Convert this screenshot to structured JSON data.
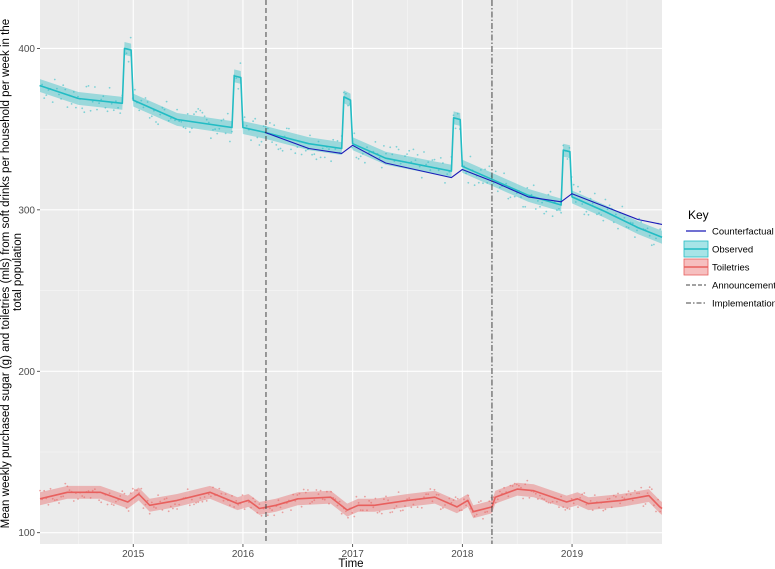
{
  "chart_data": {
    "type": "line",
    "title": "",
    "xlabel": "Time",
    "ylabel_lines": [
      "Mean weekly purchased sugar (g) and toiletries (mls) from soft drinks per household  per week in the",
      "total population"
    ],
    "xlim": [
      2014.15,
      2019.82
    ],
    "ylim": [
      93,
      430
    ],
    "x_ticks": [
      2015,
      2016,
      2017,
      2018,
      2019
    ],
    "y_ticks": [
      100,
      200,
      300,
      400
    ],
    "grid": true,
    "legend": {
      "title": "Key",
      "placement": "right",
      "entries": [
        {
          "label": "Counterfactual",
          "kind": "line",
          "color": "#1a1ab8"
        },
        {
          "label": "Observed",
          "kind": "ribbon",
          "color": "#22bcc4"
        },
        {
          "label": "Toiletries",
          "kind": "ribbon",
          "color": "#e8605e"
        },
        {
          "label": "Announcement",
          "kind": "dashed"
        },
        {
          "label": "Implementation",
          "kind": "dotdash"
        }
      ]
    },
    "reference_lines": [
      {
        "name": "Announcement",
        "x": 2016.21,
        "style": "dashed"
      },
      {
        "name": "Implementation",
        "x": 2018.27,
        "style": "dotdash"
      }
    ],
    "series": [
      {
        "name": "Observed",
        "color": "#22bcc4",
        "ribbon_halfwidth": 4,
        "points": [
          [
            2014.15,
            377
          ],
          [
            2014.5,
            369
          ],
          [
            2014.9,
            366
          ],
          [
            2014.92,
            400
          ],
          [
            2014.98,
            399
          ],
          [
            2015.0,
            368
          ],
          [
            2015.4,
            356
          ],
          [
            2015.9,
            351
          ],
          [
            2015.92,
            383
          ],
          [
            2015.98,
            382
          ],
          [
            2016.0,
            351
          ],
          [
            2016.2,
            348
          ],
          [
            2016.6,
            341
          ],
          [
            2016.9,
            338
          ],
          [
            2016.92,
            370
          ],
          [
            2016.98,
            368
          ],
          [
            2017.0,
            341
          ],
          [
            2017.3,
            332
          ],
          [
            2017.9,
            324
          ],
          [
            2017.92,
            357
          ],
          [
            2017.98,
            356
          ],
          [
            2018.0,
            327
          ],
          [
            2018.3,
            318
          ],
          [
            2018.6,
            309
          ],
          [
            2018.9,
            303
          ],
          [
            2018.92,
            337
          ],
          [
            2018.98,
            336
          ],
          [
            2019.0,
            308
          ],
          [
            2019.3,
            299
          ],
          [
            2019.6,
            289
          ],
          [
            2019.82,
            283
          ]
        ]
      },
      {
        "name": "Counterfactual",
        "color": "#1a1ab8",
        "points": [
          [
            2016.2,
            348
          ],
          [
            2016.6,
            338
          ],
          [
            2016.9,
            335
          ],
          [
            2017.0,
            340
          ],
          [
            2017.3,
            329
          ],
          [
            2017.9,
            320
          ],
          [
            2018.0,
            325
          ],
          [
            2018.3,
            317
          ],
          [
            2018.6,
            308
          ],
          [
            2018.9,
            305
          ],
          [
            2019.0,
            310
          ],
          [
            2019.3,
            302
          ],
          [
            2019.6,
            294
          ],
          [
            2019.82,
            291
          ]
        ]
      },
      {
        "name": "Toiletries",
        "color": "#e8605e",
        "ribbon_halfwidth": 4,
        "points": [
          [
            2014.15,
            121
          ],
          [
            2014.4,
            125
          ],
          [
            2014.7,
            125
          ],
          [
            2014.95,
            119
          ],
          [
            2015.05,
            124
          ],
          [
            2015.15,
            117
          ],
          [
            2015.4,
            120
          ],
          [
            2015.7,
            125
          ],
          [
            2015.95,
            118
          ],
          [
            2016.05,
            120
          ],
          [
            2016.15,
            115
          ],
          [
            2016.3,
            117
          ],
          [
            2016.5,
            121
          ],
          [
            2016.8,
            122
          ],
          [
            2016.95,
            114
          ],
          [
            2017.05,
            117
          ],
          [
            2017.2,
            117
          ],
          [
            2017.5,
            120
          ],
          [
            2017.75,
            122
          ],
          [
            2017.95,
            116
          ],
          [
            2018.05,
            120
          ],
          [
            2018.1,
            113
          ],
          [
            2018.27,
            116
          ],
          [
            2018.3,
            122
          ],
          [
            2018.5,
            127
          ],
          [
            2018.65,
            126
          ],
          [
            2018.95,
            119
          ],
          [
            2019.05,
            121
          ],
          [
            2019.15,
            118
          ],
          [
            2019.45,
            120
          ],
          [
            2019.7,
            123
          ],
          [
            2019.8,
            116
          ],
          [
            2019.82,
            115
          ]
        ]
      }
    ]
  }
}
